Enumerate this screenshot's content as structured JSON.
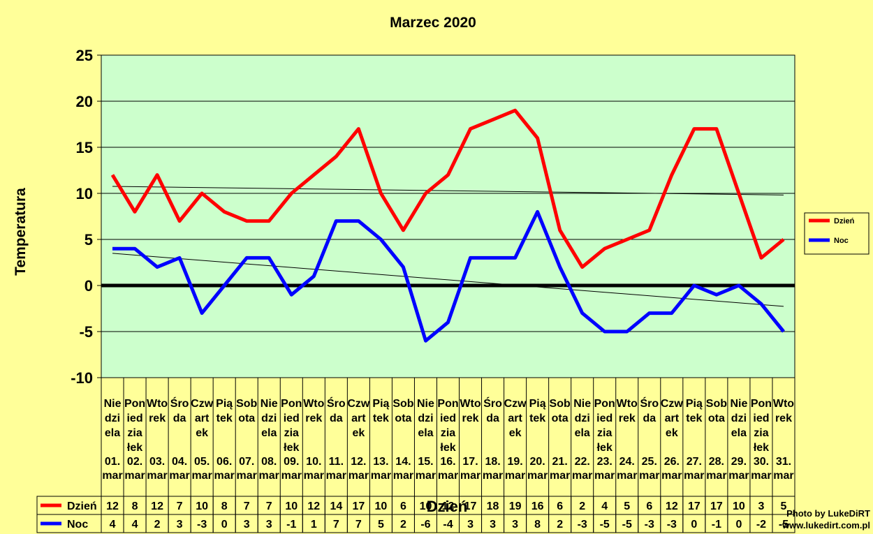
{
  "chart_data": {
    "type": "line",
    "title": "Marzec 2020",
    "ylabel": "Temperatura",
    "xlabel": "Dzień",
    "ylim": [
      -10,
      25
    ],
    "yticks": [
      25,
      20,
      15,
      10,
      5,
      0,
      -5,
      -10
    ],
    "grid": true,
    "legend_position": "right",
    "days": [
      "Niedziela",
      "Poniedziałek",
      "Wtorek",
      "Środa",
      "Czwartek",
      "Piątek",
      "Sobota",
      "Niedziela",
      "Poniedziałek",
      "Wtorek",
      "Środa",
      "Czwartek",
      "Piątek",
      "Sobota",
      "Niedziela",
      "Poniedziałek",
      "Wtorek",
      "Środa",
      "Czwartek",
      "Piątek",
      "Sobota",
      "Niedziela",
      "Poniedziałek",
      "Wtorek",
      "Środa",
      "Czwartek",
      "Piątek",
      "Sobota",
      "Niedziela",
      "Poniedziałek",
      "Wtorek"
    ],
    "dates": [
      "01.mar",
      "02.mar",
      "03.mar",
      "04.mar",
      "05.mar",
      "06.mar",
      "07.mar",
      "08.mar",
      "09.mar",
      "10.mar",
      "11.mar",
      "12.mar",
      "13.mar",
      "14.mar",
      "15.mar",
      "16.mar",
      "17.mar",
      "18.mar",
      "19.mar",
      "20.mar",
      "21.mar",
      "22.mar",
      "23.mar",
      "24.mar",
      "25.mar",
      "26.mar",
      "27.mar",
      "28.mar",
      "29.mar",
      "30.mar",
      "31.mar"
    ],
    "series": [
      {
        "name": "Dzień",
        "color": "#FF0000",
        "values": [
          12,
          8,
          12,
          7,
          10,
          8,
          7,
          7,
          10,
          12,
          14,
          17,
          10,
          6,
          10,
          12,
          17,
          18,
          19,
          16,
          6,
          2,
          4,
          5,
          6,
          12,
          17,
          17,
          10,
          3,
          5
        ]
      },
      {
        "name": "Noc",
        "color": "#0000FF",
        "values": [
          4,
          4,
          2,
          3,
          -3,
          0,
          3,
          3,
          -1,
          1,
          7,
          7,
          5,
          2,
          -6,
          -4,
          3,
          3,
          3,
          8,
          2,
          -3,
          -5,
          -5,
          -3,
          -3,
          0,
          -1,
          0,
          -2,
          -5
        ]
      }
    ],
    "trendlines": true,
    "plot_background": "#CCFFCC",
    "page_background": "#FFFF99"
  },
  "credit": {
    "line1": "Photo by LukeDiRT",
    "line2": "www.lukedirt.com.pl"
  }
}
